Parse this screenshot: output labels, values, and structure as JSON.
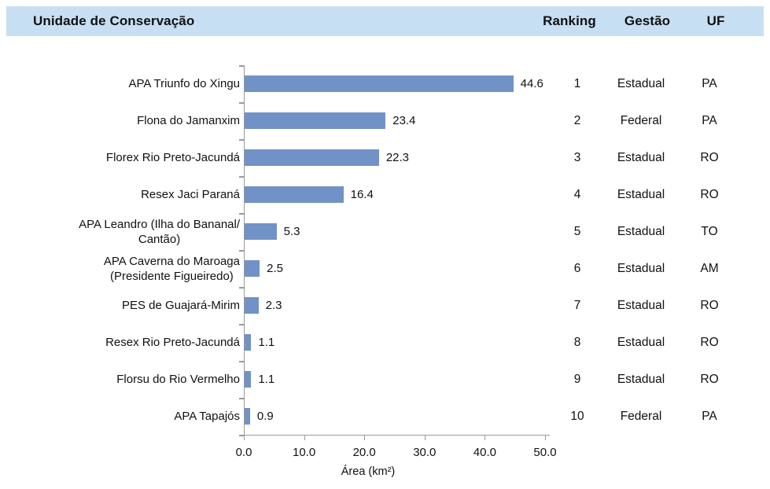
{
  "header": {
    "unit": "Unidade de Conservação",
    "ranking": "Ranking",
    "gestao": "Gestão",
    "uf": "UF"
  },
  "chart_data": {
    "type": "bar",
    "orientation": "horizontal",
    "title": "",
    "xlabel": "Área (km²)",
    "xlim": [
      0,
      50
    ],
    "xtick_labels": [
      "0.0",
      "10.0",
      "20.0",
      "30.0",
      "40.0",
      "50.0"
    ],
    "grid": "off",
    "categories": [
      "APA Triunfo do Xingu",
      "Flona do Jamanxim",
      "Florex Rio Preto-Jacundá",
      "Resex Jaci Paraná",
      "APA Leandro (Ilha do Bananal/\nCantão)",
      "APA Caverna do Maroaga\n(Presidente Figueiredo)",
      "PES de Guajará-Mirim",
      "Resex Rio Preto-Jacundá",
      "Florsu do Rio Vermelho",
      "APA Tapajós"
    ],
    "values": [
      44.6,
      23.4,
      22.3,
      16.4,
      5.3,
      2.5,
      2.3,
      1.1,
      1.1,
      0.9
    ],
    "value_labels": [
      "44.6",
      "23.4",
      "22.3",
      "16.4",
      "5.3",
      "2.5",
      "2.3",
      "1.1",
      "1.1",
      "0.9"
    ]
  },
  "rows": [
    {
      "ranking": "1",
      "gestao": "Estadual",
      "uf": "PA"
    },
    {
      "ranking": "2",
      "gestao": "Federal",
      "uf": "PA"
    },
    {
      "ranking": "3",
      "gestao": "Estadual",
      "uf": "RO"
    },
    {
      "ranking": "4",
      "gestao": "Estadual",
      "uf": "RO"
    },
    {
      "ranking": "5",
      "gestao": "Estadual",
      "uf": "TO"
    },
    {
      "ranking": "6",
      "gestao": "Estadual",
      "uf": "AM"
    },
    {
      "ranking": "7",
      "gestao": "Estadual",
      "uf": "RO"
    },
    {
      "ranking": "8",
      "gestao": "Estadual",
      "uf": "RO"
    },
    {
      "ranking": "9",
      "gestao": "Estadual",
      "uf": "RO"
    },
    {
      "ranking": "10",
      "gestao": "Federal",
      "uf": "PA"
    }
  ],
  "colors": {
    "header_bg": "#C6DFF3",
    "bar": "#7092C6",
    "axis": "#9A9A9A",
    "text": "#111111"
  }
}
